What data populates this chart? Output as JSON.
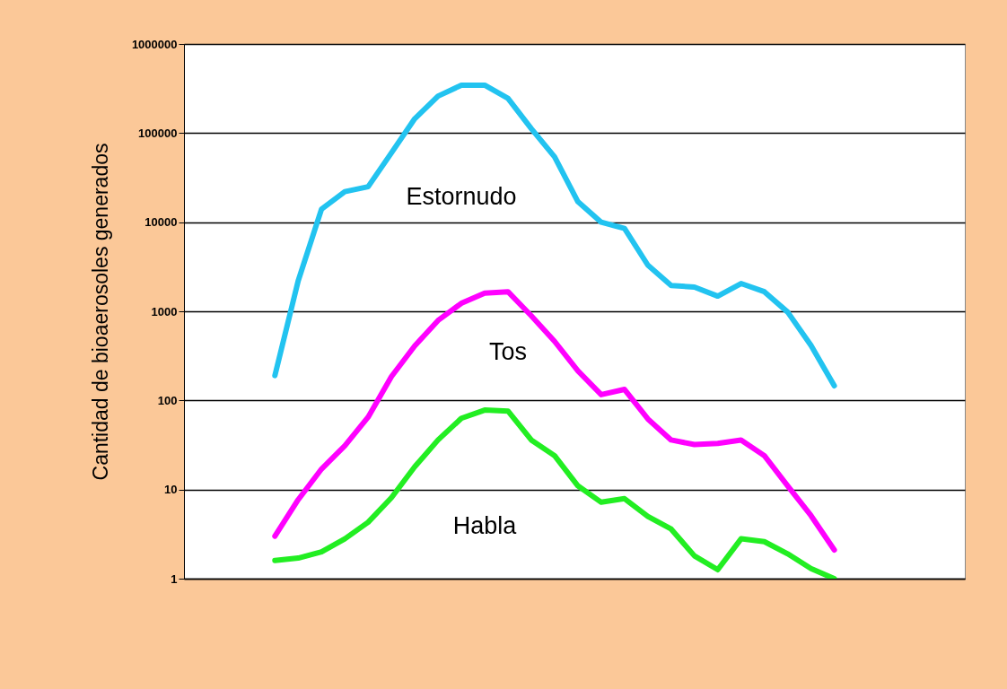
{
  "chart_data": {
    "type": "line",
    "ylabel": "Cantidad de bioaerosoles generados",
    "log": true,
    "grid": "y",
    "tick_labels": "y",
    "marker": "none",
    "line_style": "solid",
    "categories": [
      null,
      null,
      null,
      null,
      null,
      null,
      null,
      null,
      null,
      null,
      null,
      null,
      null,
      null,
      null,
      null,
      null,
      null,
      null,
      null,
      null,
      null,
      null,
      null,
      null
    ],
    "ylim": [
      1,
      1000000
    ],
    "yticks": [
      1,
      10,
      100,
      1000,
      10000,
      100000,
      1000000
    ],
    "series": [
      {
        "name": "Estornudo",
        "color": "#22c3f0",
        "values": [
          190,
          2200,
          14000,
          22000,
          25000,
          60000,
          145000,
          260000,
          345000,
          345000,
          245000,
          112000,
          54000,
          17000,
          10000,
          8500,
          3300,
          1950,
          1870,
          1480,
          2050,
          1660,
          980,
          415,
          146
        ]
      },
      {
        "name": "Tos",
        "color": "#ff00ff",
        "values": [
          3.0,
          7.7,
          17,
          31,
          65,
          185,
          410,
          790,
          1230,
          1600,
          1660,
          890,
          460,
          215,
          116,
          133,
          62,
          36,
          32,
          33,
          36,
          24,
          11,
          5.1,
          2.1
        ]
      },
      {
        "name": "Habla",
        "color": "#22ee22",
        "values": [
          1.6,
          1.7,
          2.0,
          2.8,
          4.3,
          8.1,
          18,
          36,
          63,
          78,
          76,
          36,
          24,
          11,
          7.2,
          7.9,
          5.0,
          3.6,
          1.8,
          1.26,
          2.8,
          2.6,
          1.9,
          1.3,
          1.0
        ]
      }
    ]
  }
}
